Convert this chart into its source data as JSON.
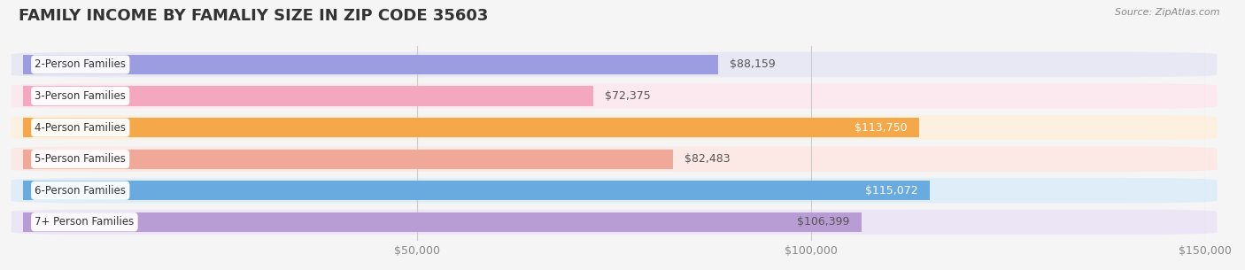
{
  "title": "FAMILY INCOME BY FAMALIY SIZE IN ZIP CODE 35603",
  "source": "Source: ZipAtlas.com",
  "categories": [
    "2-Person Families",
    "3-Person Families",
    "4-Person Families",
    "5-Person Families",
    "6-Person Families",
    "7+ Person Families"
  ],
  "values": [
    88159,
    72375,
    113750,
    82483,
    115072,
    106399
  ],
  "bar_colors": [
    "#9b9de0",
    "#f4a8c0",
    "#f5a84a",
    "#f0a898",
    "#6aabdf",
    "#b89cd4"
  ],
  "bar_bg_colors": [
    "#e8e8f5",
    "#fce8ef",
    "#fef0e0",
    "#fce8e5",
    "#deedf8",
    "#ece5f5"
  ],
  "label_colors": [
    "#555555",
    "#555555",
    "#ffffff",
    "#555555",
    "#ffffff",
    "#555555"
  ],
  "value_labels": [
    "$88,159",
    "$72,375",
    "$113,750",
    "$82,483",
    "$115,072",
    "$106,399"
  ],
  "xlim": [
    0,
    150000
  ],
  "xticks": [
    0,
    50000,
    100000,
    150000
  ],
  "xtick_labels": [
    "",
    "$50,000",
    "$100,000",
    "$150,000"
  ],
  "background_color": "#f5f5f5",
  "title_color": "#333333",
  "title_fontsize": 13,
  "bar_height": 0.62,
  "row_bg_color": "#f0f0f0"
}
